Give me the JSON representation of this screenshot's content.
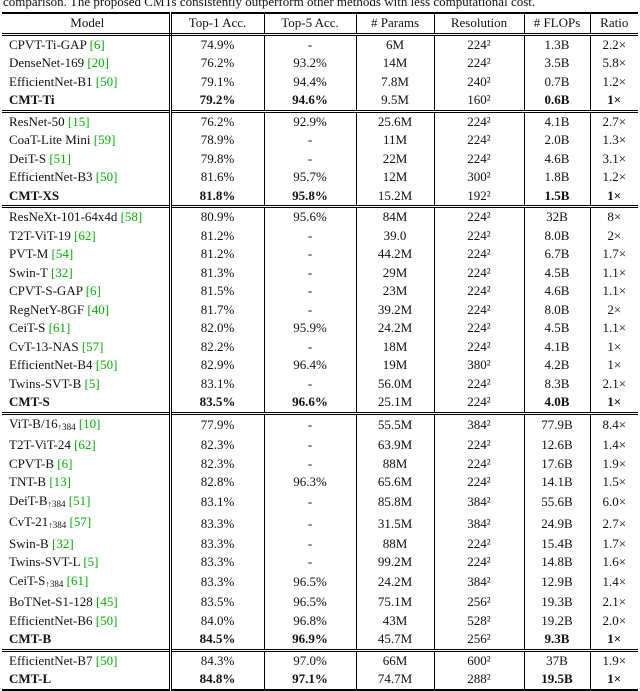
{
  "caption": "comparison. The proposed CMTs consistently outperform other methods with less computational cost.",
  "colors": {
    "cite_green": "#00b000",
    "rule_black": "#000000"
  },
  "table": {
    "headers": [
      "Model",
      "Top-1 Acc.",
      "Top-5 Acc.",
      "# Params",
      "Resolution",
      "# FLOPs",
      "Ratio"
    ],
    "sections": [
      {
        "rows": [
          {
            "model": "CPVT-Ti-GAP",
            "sub": "",
            "cite": "[6]",
            "top1": "74.9%",
            "top5": "-",
            "params": "6M",
            "res": "224²",
            "flops": "1.3B",
            "ratio": "2.2×",
            "bold": false
          },
          {
            "model": "DenseNet-169",
            "sub": "",
            "cite": "[20]",
            "top1": "76.2%",
            "top5": "93.2%",
            "params": "14M",
            "res": "224²",
            "flops": "3.5B",
            "ratio": "5.8×",
            "bold": false
          },
          {
            "model": "EfficientNet-B1",
            "sub": "",
            "cite": "[50]",
            "top1": "79.1%",
            "top5": "94.4%",
            "params": "7.8M",
            "res": "240²",
            "flops": "0.7B",
            "ratio": "1.2×",
            "bold": false
          },
          {
            "model": "CMT-Ti",
            "sub": "",
            "cite": "",
            "top1": "79.2%",
            "top5": "94.6%",
            "params": "9.5M",
            "res": "160²",
            "flops": "0.6B",
            "ratio": "1×",
            "bold": true
          }
        ]
      },
      {
        "rows": [
          {
            "model": "ResNet-50",
            "sub": "",
            "cite": "[15]",
            "top1": "76.2%",
            "top5": "92.9%",
            "params": "25.6M",
            "res": "224²",
            "flops": "4.1B",
            "ratio": "2.7×",
            "bold": false
          },
          {
            "model": "CoaT-Lite Mini",
            "sub": "",
            "cite": "[59]",
            "top1": "78.9%",
            "top5": "-",
            "params": "11M",
            "res": "224²",
            "flops": "2.0B",
            "ratio": "1.3×",
            "bold": false
          },
          {
            "model": "DeiT-S",
            "sub": "",
            "cite": "[51]",
            "top1": "79.8%",
            "top5": "-",
            "params": "22M",
            "res": "224²",
            "flops": "4.6B",
            "ratio": "3.1×",
            "bold": false
          },
          {
            "model": "EfficientNet-B3",
            "sub": "",
            "cite": "[50]",
            "top1": "81.6%",
            "top5": "95.7%",
            "params": "12M",
            "res": "300²",
            "flops": "1.8B",
            "ratio": "1.2×",
            "bold": false
          },
          {
            "model": "CMT-XS",
            "sub": "",
            "cite": "",
            "top1": "81.8%",
            "top5": "95.8%",
            "params": "15.2M",
            "res": "192²",
            "flops": "1.5B",
            "ratio": "1×",
            "bold": true
          }
        ]
      },
      {
        "rows": [
          {
            "model": "ResNeXt-101-64x4d",
            "sub": "",
            "cite": "[58]",
            "top1": "80.9%",
            "top5": "95.6%",
            "params": "84M",
            "res": "224²",
            "flops": "32B",
            "ratio": "8×",
            "bold": false
          },
          {
            "model": "T2T-ViT-19",
            "sub": "",
            "cite": "[62]",
            "top1": "81.2%",
            "top5": "-",
            "params": "39.0",
            "res": "224²",
            "flops": "8.0B",
            "ratio": "2×",
            "bold": false
          },
          {
            "model": "PVT-M",
            "sub": "",
            "cite": "[54]",
            "top1": "81.2%",
            "top5": "-",
            "params": "44.2M",
            "res": "224²",
            "flops": "6.7B",
            "ratio": "1.7×",
            "bold": false
          },
          {
            "model": "Swin-T",
            "sub": "",
            "cite": "[32]",
            "top1": "81.3%",
            "top5": "-",
            "params": "29M",
            "res": "224²",
            "flops": "4.5B",
            "ratio": "1.1×",
            "bold": false
          },
          {
            "model": "CPVT-S-GAP",
            "sub": "",
            "cite": "[6]",
            "top1": "81.5%",
            "top5": "-",
            "params": "23M",
            "res": "224²",
            "flops": "4.6B",
            "ratio": "1.1×",
            "bold": false
          },
          {
            "model": "RegNetY-8GF",
            "sub": "",
            "cite": "[40]",
            "top1": "81.7%",
            "top5": "-",
            "params": "39.2M",
            "res": "224²",
            "flops": "8.0B",
            "ratio": "2×",
            "bold": false
          },
          {
            "model": "CeiT-S",
            "sub": "",
            "cite": "[61]",
            "top1": "82.0%",
            "top5": "95.9%",
            "params": "24.2M",
            "res": "224²",
            "flops": "4.5B",
            "ratio": "1.1×",
            "bold": false
          },
          {
            "model": "CvT-13-NAS",
            "sub": "",
            "cite": "[57]",
            "top1": "82.2%",
            "top5": "-",
            "params": "18M",
            "res": "224²",
            "flops": "4.1B",
            "ratio": "1×",
            "bold": false
          },
          {
            "model": "EfficientNet-B4",
            "sub": "",
            "cite": "[50]",
            "top1": "82.9%",
            "top5": "96.4%",
            "params": "19M",
            "res": "380²",
            "flops": "4.2B",
            "ratio": "1×",
            "bold": false
          },
          {
            "model": "Twins-SVT-B",
            "sub": "",
            "cite": "[5]",
            "top1": "83.1%",
            "top5": "-",
            "params": "56.0M",
            "res": "224²",
            "flops": "8.3B",
            "ratio": "2.1×",
            "bold": false
          },
          {
            "model": "CMT-S",
            "sub": "",
            "cite": "",
            "top1": "83.5%",
            "top5": "96.6%",
            "params": "25.1M",
            "res": "224²",
            "flops": "4.0B",
            "ratio": "1×",
            "bold": true
          }
        ]
      },
      {
        "rows": [
          {
            "model": "ViT-B/16",
            "sub": "↑384",
            "cite": "[10]",
            "top1": "77.9%",
            "top5": "-",
            "params": "55.5M",
            "res": "384²",
            "flops": "77.9B",
            "ratio": "8.4×",
            "bold": false
          },
          {
            "model": "T2T-ViT-24",
            "sub": "",
            "cite": "[62]",
            "top1": "82.3%",
            "top5": "-",
            "params": "63.9M",
            "res": "224²",
            "flops": "12.6B",
            "ratio": "1.4×",
            "bold": false
          },
          {
            "model": "CPVT-B",
            "sub": "",
            "cite": "[6]",
            "top1": "82.3%",
            "top5": "-",
            "params": "88M",
            "res": "224²",
            "flops": "17.6B",
            "ratio": "1.9×",
            "bold": false
          },
          {
            "model": "TNT-B",
            "sub": "",
            "cite": "[13]",
            "top1": "82.8%",
            "top5": "96.3%",
            "params": "65.6M",
            "res": "224²",
            "flops": "14.1B",
            "ratio": "1.5×",
            "bold": false
          },
          {
            "model": "DeiT-B",
            "sub": "↑384",
            "cite": "[51]",
            "top1": "83.1%",
            "top5": "-",
            "params": "85.8M",
            "res": "384²",
            "flops": "55.6B",
            "ratio": "6.0×",
            "bold": false
          },
          {
            "model": "CvT-21",
            "sub": "↑384",
            "cite": "[57]",
            "top1": "83.3%",
            "top5": "-",
            "params": "31.5M",
            "res": "384²",
            "flops": "24.9B",
            "ratio": "2.7×",
            "bold": false
          },
          {
            "model": "Swin-B",
            "sub": "",
            "cite": "[32]",
            "top1": "83.3%",
            "top5": "-",
            "params": "88M",
            "res": "224²",
            "flops": "15.4B",
            "ratio": "1.7×",
            "bold": false
          },
          {
            "model": "Twins-SVT-L",
            "sub": "",
            "cite": "[5]",
            "top1": "83.3%",
            "top5": "-",
            "params": "99.2M",
            "res": "224²",
            "flops": "14.8B",
            "ratio": "1.6×",
            "bold": false
          },
          {
            "model": "CeiT-S",
            "sub": "↑384",
            "cite": "[61]",
            "top1": "83.3%",
            "top5": "96.5%",
            "params": "24.2M",
            "res": "384²",
            "flops": "12.9B",
            "ratio": "1.4×",
            "bold": false
          },
          {
            "model": "BoTNet-S1-128",
            "sub": "",
            "cite": "[45]",
            "top1": "83.5%",
            "top5": "96.5%",
            "params": "75.1M",
            "res": "256²",
            "flops": "19.3B",
            "ratio": "2.1×",
            "bold": false
          },
          {
            "model": "EfficientNet-B6",
            "sub": "",
            "cite": "[50]",
            "top1": "84.0%",
            "top5": "96.8%",
            "params": "43M",
            "res": "528²",
            "flops": "19.2B",
            "ratio": "2.0×",
            "bold": false
          },
          {
            "model": "CMT-B",
            "sub": "",
            "cite": "",
            "top1": "84.5%",
            "top5": "96.9%",
            "params": "45.7M",
            "res": "256²",
            "flops": "9.3B",
            "ratio": "1×",
            "bold": true
          }
        ]
      },
      {
        "rows": [
          {
            "model": "EfficientNet-B7",
            "sub": "",
            "cite": "[50]",
            "top1": "84.3%",
            "top5": "97.0%",
            "params": "66M",
            "res": "600²",
            "flops": "37B",
            "ratio": "1.9×",
            "bold": false
          },
          {
            "model": "CMT-L",
            "sub": "",
            "cite": "",
            "top1": "84.8%",
            "top5": "97.1%",
            "params": "74.7M",
            "res": "288²",
            "flops": "19.5B",
            "ratio": "1×",
            "bold": true
          }
        ]
      }
    ]
  }
}
